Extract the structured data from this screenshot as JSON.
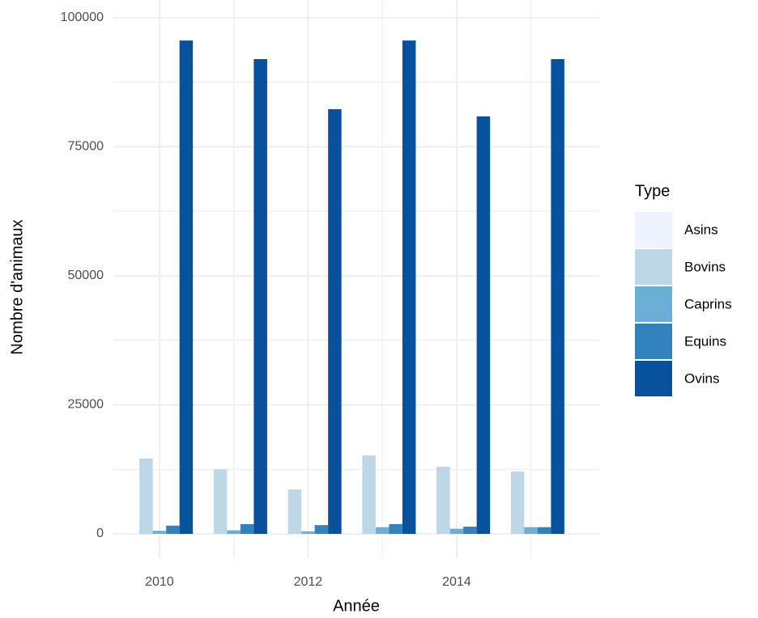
{
  "chart_data": {
    "type": "bar",
    "x_label": "Année",
    "y_label": "Nombre d'animaux",
    "legend_title": "Type",
    "x": [
      2010,
      2011,
      2012,
      2013,
      2014,
      2015
    ],
    "series": [
      {
        "name": "Asins",
        "color": "#eff3ff",
        "values": [
          100,
          100,
          100,
          100,
          100,
          100
        ]
      },
      {
        "name": "Bovins",
        "color": "#bdd7e7",
        "values": [
          14600,
          12500,
          8600,
          15200,
          13000,
          12100
        ]
      },
      {
        "name": "Caprins",
        "color": "#6baed6",
        "values": [
          600,
          700,
          500,
          1300,
          1000,
          1300
        ]
      },
      {
        "name": "Equins",
        "color": "#3182bd",
        "values": [
          1600,
          1900,
          1700,
          1900,
          1400,
          1300
        ]
      },
      {
        "name": "Ovins",
        "color": "#08519c",
        "values": [
          95600,
          92000,
          82300,
          95600,
          80900,
          92000
        ]
      }
    ],
    "xlim": [
      2009.38,
      2015.92
    ],
    "xticks": [
      2010,
      2012,
      2014
    ],
    "ylim": [
      -4700,
      103450
    ],
    "yticks": [
      0,
      25000,
      50000,
      75000,
      100000
    ],
    "grid": true,
    "legend": "right"
  }
}
